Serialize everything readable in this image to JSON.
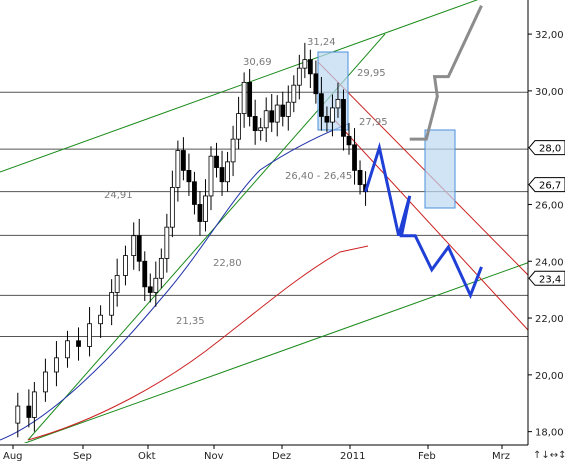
{
  "chart_data": {
    "type": "candlestick",
    "ylim": [
      17.6,
      33.2
    ],
    "y_ticks": [
      18,
      20,
      22,
      24,
      26,
      28,
      30,
      32
    ],
    "x_tick_labels": [
      "Aug",
      "Sep",
      "Okt",
      "Nov",
      "Dez",
      "2011",
      "Feb",
      "Mrz"
    ],
    "level_labels": [
      "31,24",
      "30,69",
      "29,95",
      "27,95",
      "26,40 - 26,45",
      "24,91",
      "22,80",
      "21,35"
    ],
    "horizontal_levels": [
      29.95,
      27.95,
      26.45,
      24.91,
      22.8,
      21.35
    ],
    "price_tags": [
      "28,0",
      "26,7",
      "23,4"
    ],
    "price_tag_values": [
      28.0,
      26.7,
      23.4
    ],
    "close_path": [
      [
        0,
        18.3
      ],
      [
        4,
        18.9
      ],
      [
        8,
        18.5
      ],
      [
        10,
        19.4
      ],
      [
        14,
        20.1
      ],
      [
        18,
        20.6
      ],
      [
        22,
        21.2
      ],
      [
        26,
        21.0
      ],
      [
        30,
        21.8
      ],
      [
        34,
        22.1
      ],
      [
        38,
        22.9
      ],
      [
        40,
        23.5
      ],
      [
        43,
        24.2
      ],
      [
        46,
        24.9
      ],
      [
        48,
        24.0
      ],
      [
        50,
        23.1
      ],
      [
        52,
        22.9
      ],
      [
        54,
        23.4
      ],
      [
        56,
        24.1
      ],
      [
        58,
        25.2
      ],
      [
        60,
        26.6
      ],
      [
        62,
        27.9
      ],
      [
        64,
        27.2
      ],
      [
        66,
        26.8
      ],
      [
        68,
        26.0
      ],
      [
        70,
        25.4
      ],
      [
        72,
        26.3
      ],
      [
        74,
        27.7
      ],
      [
        76,
        27.3
      ],
      [
        78,
        26.8
      ],
      [
        80,
        27.5
      ],
      [
        82,
        28.3
      ],
      [
        84,
        29.2
      ],
      [
        86,
        30.3
      ],
      [
        88,
        29.1
      ],
      [
        90,
        28.6
      ],
      [
        92,
        28.7
      ],
      [
        94,
        29.3
      ],
      [
        96,
        28.9
      ],
      [
        98,
        29.5
      ],
      [
        100,
        29.1
      ],
      [
        102,
        29.6
      ],
      [
        104,
        30.2
      ],
      [
        106,
        30.8
      ],
      [
        108,
        31.1
      ],
      [
        110,
        30.6
      ],
      [
        112,
        29.9
      ],
      [
        114,
        29.1
      ],
      [
        116,
        28.9
      ],
      [
        118,
        29.4
      ],
      [
        120,
        29.7
      ],
      [
        122,
        28.4
      ],
      [
        124,
        28.1
      ],
      [
        126,
        27.2
      ],
      [
        128,
        26.7
      ],
      [
        130,
        26.45
      ]
    ],
    "blue_projection": [
      [
        130,
        26.45
      ],
      [
        135,
        28.0
      ],
      [
        142,
        24.9
      ],
      [
        146,
        26.3
      ],
      [
        143,
        24.9
      ],
      [
        148,
        24.9
      ],
      [
        154,
        23.7
      ],
      [
        160,
        24.5
      ],
      [
        168,
        22.8
      ],
      [
        172,
        23.8
      ]
    ],
    "gray_projection": [
      [
        146,
        28.3
      ],
      [
        152,
        28.3
      ],
      [
        156,
        29.8
      ],
      [
        155,
        30.5
      ],
      [
        160,
        30.5
      ],
      [
        172,
        33.0
      ]
    ]
  }
}
